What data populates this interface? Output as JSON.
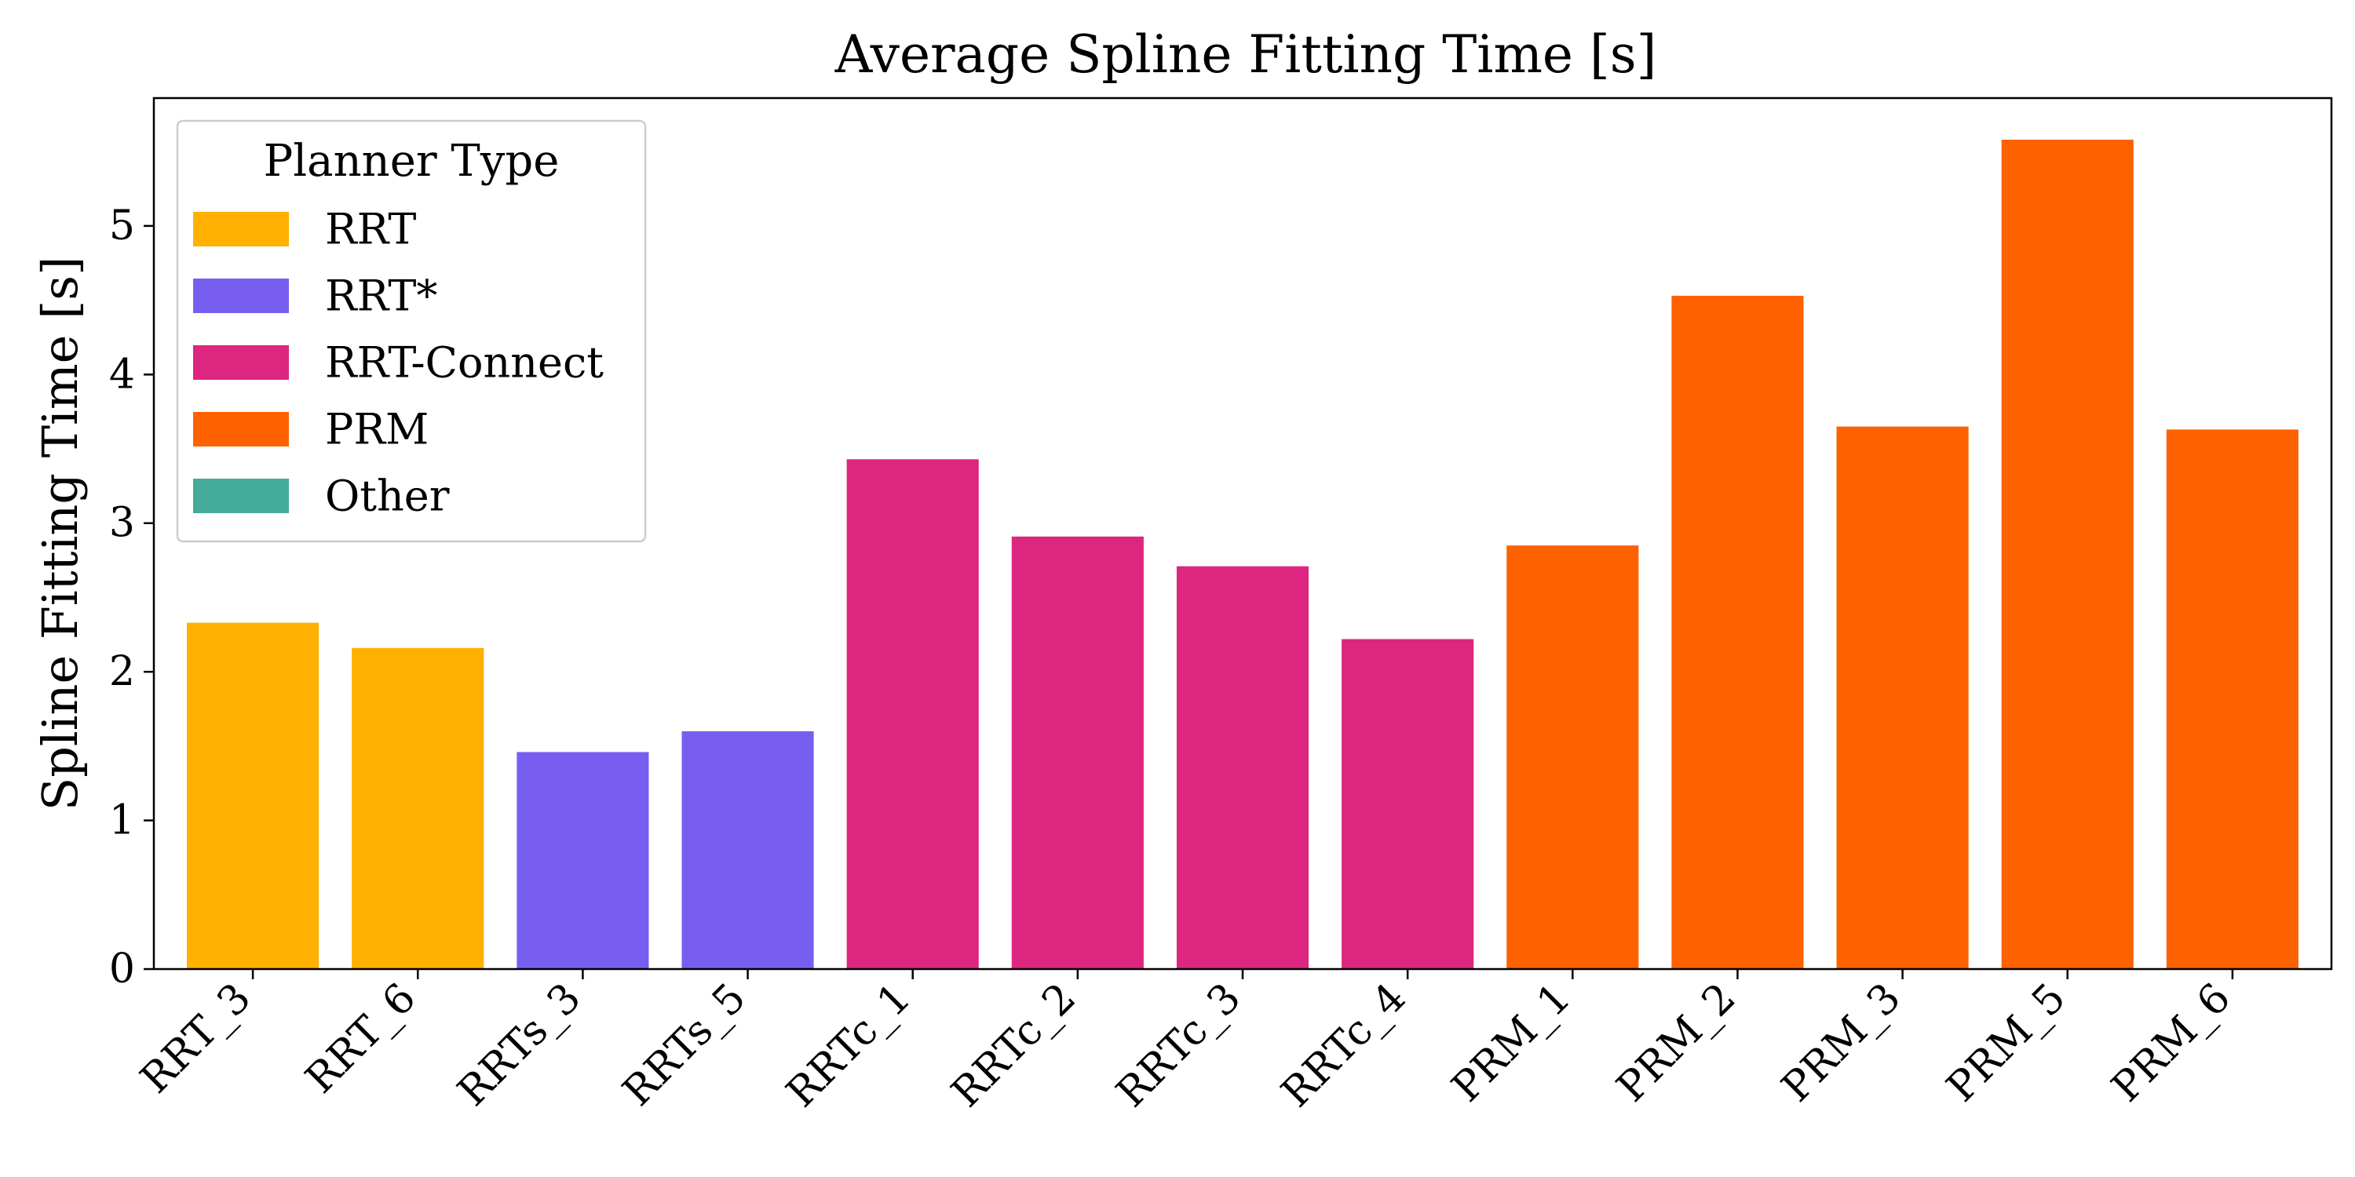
{
  "chart_data": {
    "type": "bar",
    "title": "Average Spline Fitting Time [s]",
    "xlabel": "",
    "ylabel": "Spline Fitting Time [s]",
    "categories": [
      "RRT_3",
      "RRT_6",
      "RRTs_3",
      "RRTs_5",
      "RRTc_1",
      "RRTc_2",
      "RRTc_3",
      "RRTc_4",
      "PRM_1",
      "PRM_2",
      "PRM_3",
      "PRM_5",
      "PRM_6"
    ],
    "values": [
      2.33,
      2.16,
      1.46,
      1.6,
      3.43,
      2.91,
      2.71,
      2.22,
      2.85,
      4.53,
      3.65,
      5.58,
      3.63
    ],
    "groups": [
      "RRT",
      "RRT",
      "RRT*",
      "RRT*",
      "RRT-Connect",
      "RRT-Connect",
      "RRT-Connect",
      "RRT-Connect",
      "PRM",
      "PRM",
      "PRM",
      "PRM",
      "PRM"
    ],
    "yticks": [
      0,
      1,
      2,
      3,
      4,
      5
    ],
    "ylim": [
      0,
      5.86
    ],
    "grid": false,
    "legend": {
      "title": "Planner Type",
      "placement": "top-left",
      "entries": [
        {
          "label": "RRT",
          "color": "#FFB000"
        },
        {
          "label": "RRT*",
          "color": "#785EF0"
        },
        {
          "label": "RRT-Connect",
          "color": "#DC267F"
        },
        {
          "label": "PRM",
          "color": "#FE6100"
        },
        {
          "label": "Other",
          "color": "#44AA99"
        }
      ]
    }
  }
}
